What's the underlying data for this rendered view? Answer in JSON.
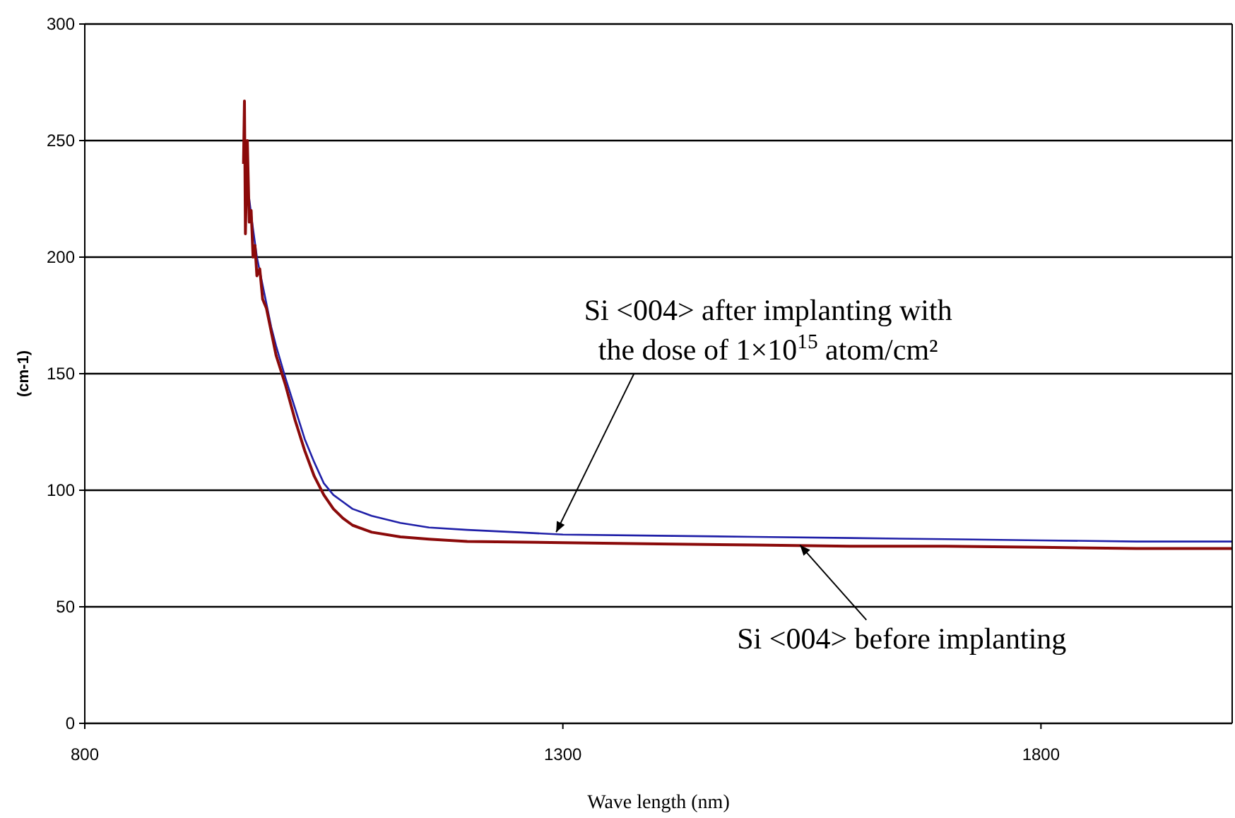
{
  "chart_data": {
    "type": "line",
    "xlabel": "Wave length (nm)",
    "ylabel": "(cm-1)",
    "xlim": [
      800,
      2000
    ],
    "xticks": [
      800,
      1300,
      1800
    ],
    "ylim": [
      0,
      300
    ],
    "yticks": [
      0,
      50,
      100,
      150,
      200,
      250,
      300
    ],
    "grid": "y",
    "line_style": "solid",
    "series": [
      {
        "color": "#2020a8",
        "x": [
          972,
          975,
          980,
          985,
          990,
          995,
          1000,
          1010,
          1020,
          1030,
          1040,
          1050,
          1060,
          1070,
          1080,
          1100,
          1130,
          1160,
          1200,
          1250,
          1300,
          1400,
          1500,
          1600,
          1700,
          1800,
          1900,
          2000
        ],
        "values": [
          225,
          215,
          200,
          190,
          180,
          170,
          162,
          148,
          135,
          122,
          112,
          103,
          98,
          95,
          92,
          89,
          86,
          84,
          83,
          82,
          81,
          80.5,
          80,
          79.5,
          79,
          78.5,
          78,
          78
        ]
      },
      {
        "color": "#8b0a0a",
        "x": [
          966,
          967,
          968,
          970,
          972,
          974,
          976,
          978,
          980,
          983,
          986,
          990,
          995,
          1000,
          1010,
          1020,
          1030,
          1040,
          1050,
          1060,
          1070,
          1080,
          1100,
          1130,
          1160,
          1200,
          1300,
          1400,
          1500,
          1600,
          1700,
          1800,
          1900,
          2000
        ],
        "values": [
          240,
          267,
          210,
          250,
          215,
          220,
          200,
          205,
          192,
          195,
          182,
          178,
          168,
          158,
          145,
          130,
          117,
          106,
          98,
          92,
          88,
          85,
          82,
          80,
          79,
          78,
          77.5,
          77,
          76.5,
          76,
          76,
          75.5,
          75,
          75
        ]
      }
    ],
    "annotations": [
      {
        "text": "Si <004> after implanting with the dose of 1×10$^{15}$ atom/cm²",
        "x": 1293,
        "y": 82
      },
      {
        "text": "Si <004> before implanting",
        "x": 1548,
        "y": 76.5
      }
    ]
  }
}
